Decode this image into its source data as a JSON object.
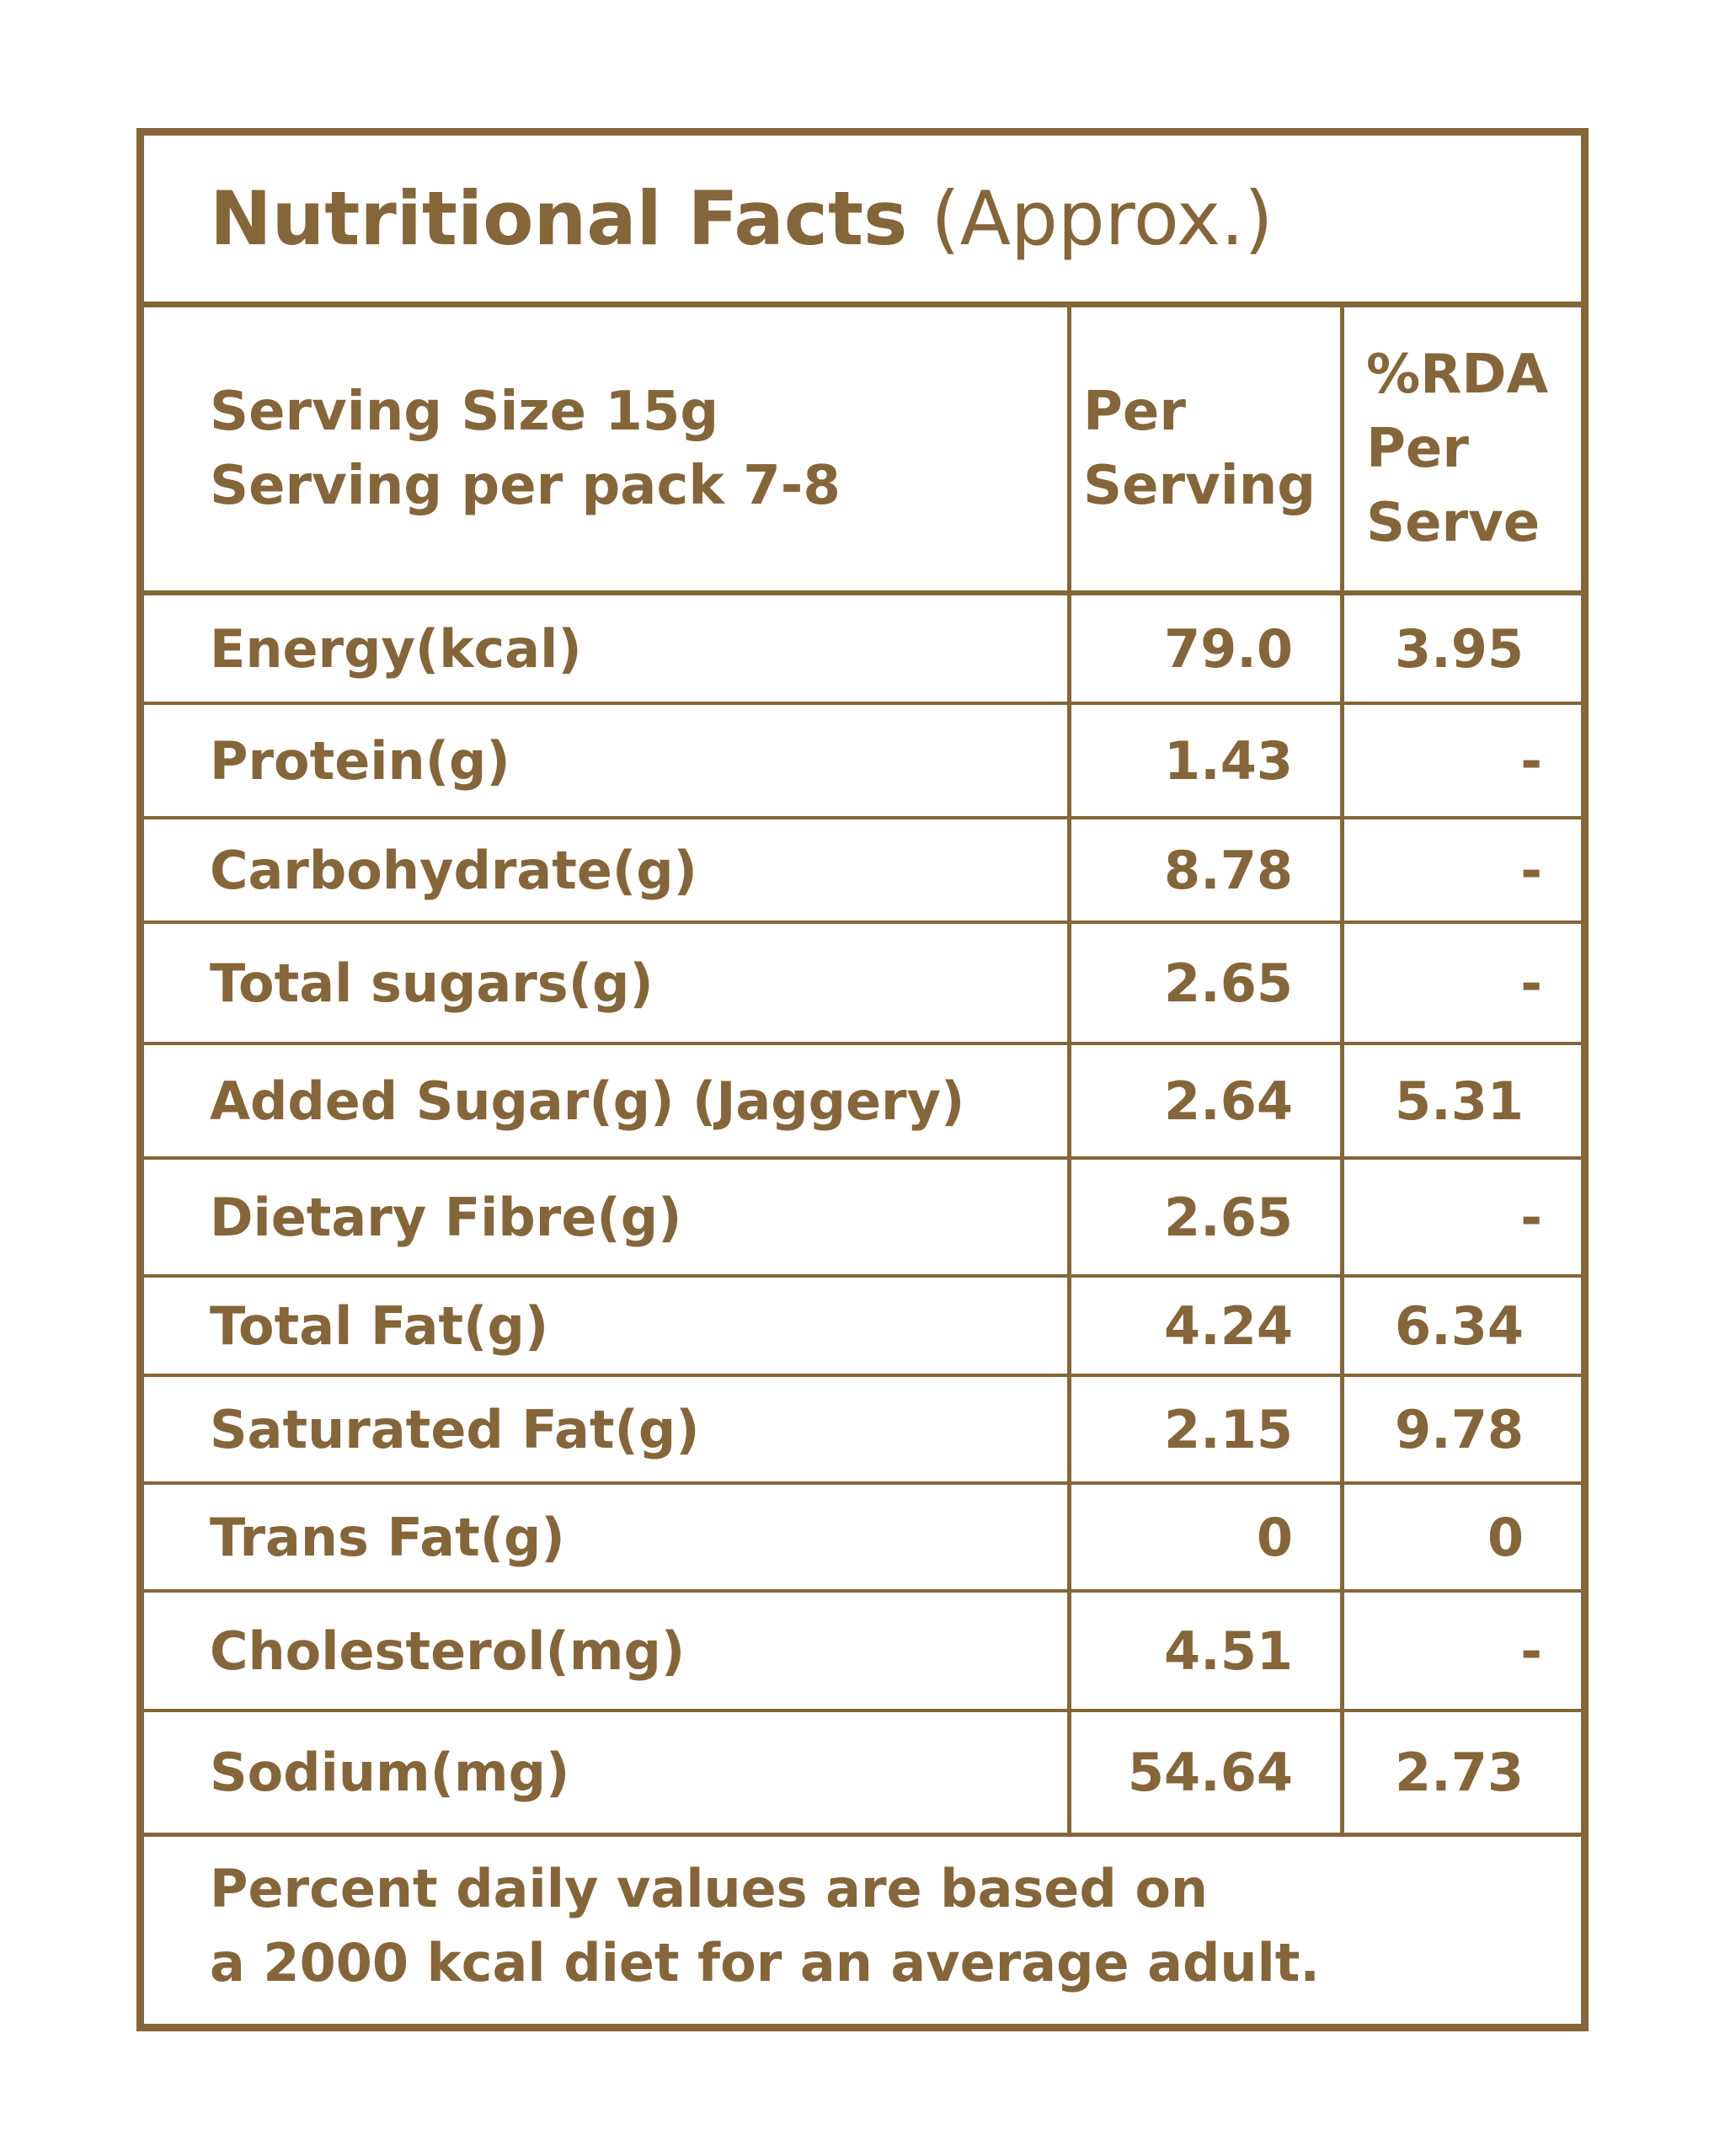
{
  "title": {
    "bold": "Nutritional Facts",
    "light": "(Approx.)"
  },
  "header": {
    "serving_size": "Serving Size 15g",
    "serving_per_pack": "Serving per pack 7-8",
    "per_serving": [
      "Per",
      "Serving"
    ],
    "rda": [
      "%RDA",
      "Per",
      "Serve"
    ]
  },
  "rows": [
    {
      "nutrient": "Energy(kcal)",
      "per_serving": "79.0",
      "rda": "3.95"
    },
    {
      "nutrient": "Protein(g)",
      "per_serving": "1.43",
      "rda": "-"
    },
    {
      "nutrient": "Carbohydrate(g)",
      "per_serving": "8.78",
      "rda": "-"
    },
    {
      "nutrient": "Total sugars(g)",
      "per_serving": "2.65",
      "rda": "-"
    },
    {
      "nutrient": "Added Sugar(g) (Jaggery)",
      "per_serving": "2.64",
      "rda": "5.31"
    },
    {
      "nutrient": "Dietary Fibre(g)",
      "per_serving": "2.65",
      "rda": "-"
    },
    {
      "nutrient": "Total Fat(g)",
      "per_serving": "4.24",
      "rda": "6.34"
    },
    {
      "nutrient": "Saturated Fat(g)",
      "per_serving": "2.15",
      "rda": "9.78"
    },
    {
      "nutrient": "Trans Fat(g)",
      "per_serving": "0",
      "rda": "0"
    },
    {
      "nutrient": "Cholesterol(mg)",
      "per_serving": "4.51",
      "rda": "-"
    },
    {
      "nutrient": "Sodium(mg)",
      "per_serving": "54.64",
      "rda": "2.73"
    }
  ],
  "footer": {
    "line1": "Percent daily values are based on",
    "line2": "a 2000 kcal diet for an average adult."
  }
}
